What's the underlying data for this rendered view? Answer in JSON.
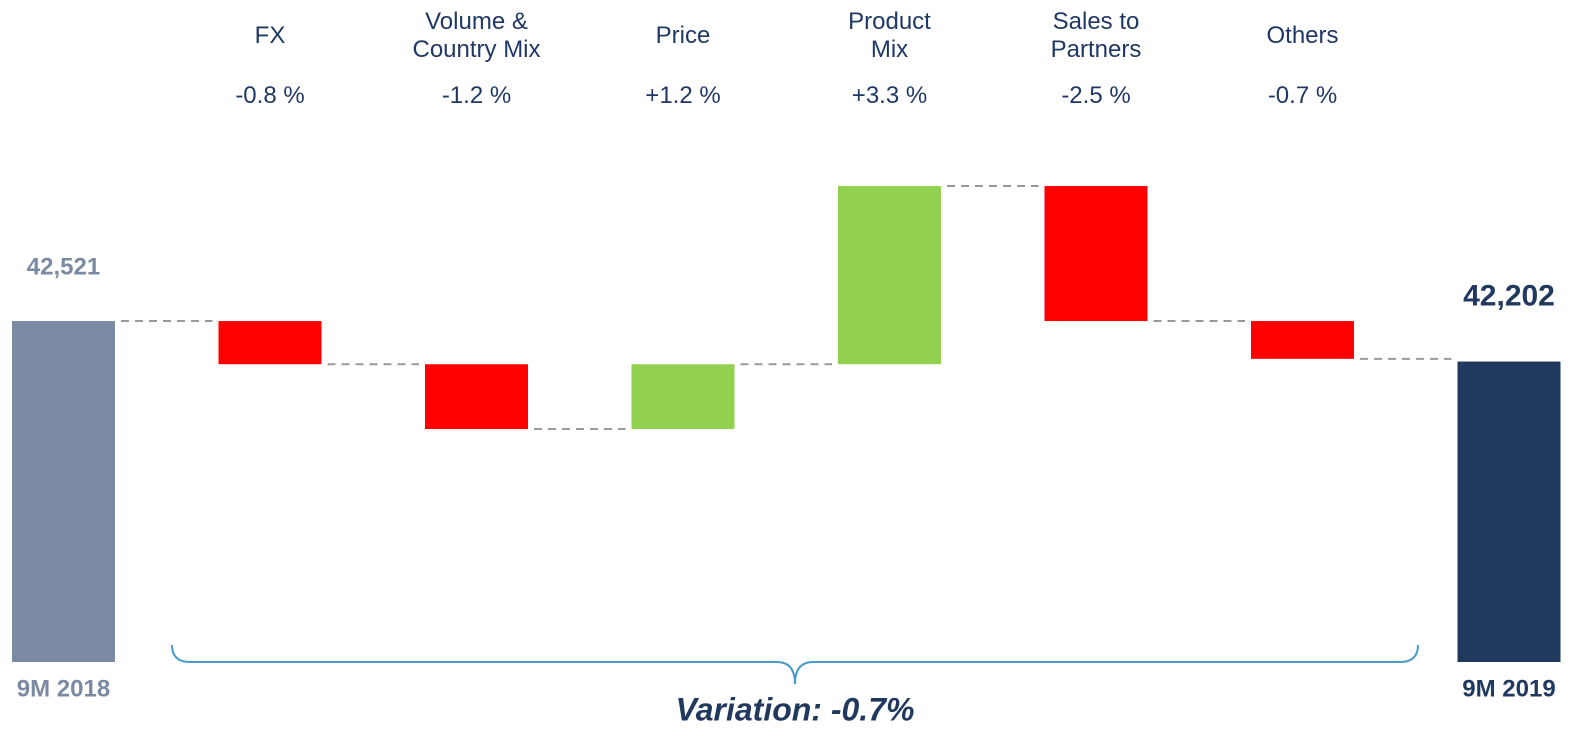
{
  "chart_data": {
    "type": "waterfall",
    "categories": [
      "FX",
      "Volume &\nCountry Mix",
      "Price",
      "Product\nMix",
      "Sales to\nPartners",
      "Others"
    ],
    "values": [
      -0.8,
      -1.2,
      1.2,
      3.3,
      -2.5,
      -0.7
    ],
    "value_labels": [
      "-0.8 %",
      "-1.2 %",
      "+1.2 %",
      "+3.3 %",
      "-2.5 %",
      "-0.7 %"
    ],
    "start": {
      "label": "9M 2018",
      "value": 42521,
      "value_label": "42,521",
      "color": "#7a8aa3"
    },
    "end": {
      "label": "9M 2019",
      "value": 42202,
      "value_label": "42,202",
      "color": "#22395f"
    },
    "increase_color": "#92d050",
    "decrease_color": "#ff0000",
    "annotation": "Variation: -0.7%",
    "ylim": [
      39836,
      43986
    ]
  }
}
